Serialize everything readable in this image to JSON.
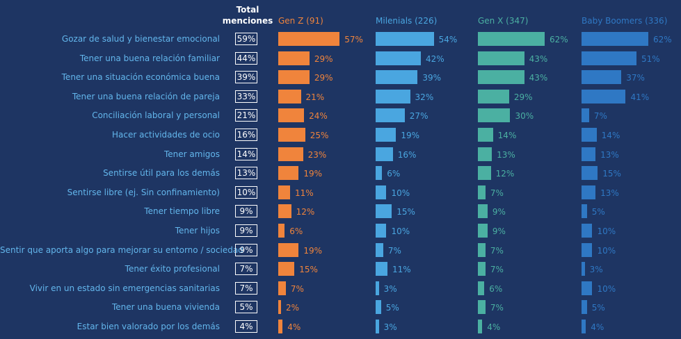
{
  "chart_data": {
    "type": "bar",
    "orientation": "horizontal",
    "total_header": "Total menciones",
    "categories": [
      "Gozar de salud y bienestar emocional",
      "Tener una buena relación familiar",
      "Tener una situación económica buena",
      "Tener una buena relación de pareja",
      "Conciliación laboral y personal",
      "Hacer actividades de ocio",
      "Tener amigos",
      "Sentirse útil para los demás",
      "Sentirse libre (ej. Sin confinamiento)",
      "Tener tiempo libre",
      "Tener hijos",
      "Sentir que aporta algo para mejorar su entorno / sociedad",
      "Tener éxito profesional",
      "Vivir en un estado sin emergencias sanitarias",
      "Tener una buena vivienda",
      "Estar bien valorado por los demás"
    ],
    "totals": [
      59,
      44,
      39,
      33,
      21,
      16,
      14,
      13,
      10,
      9,
      9,
      9,
      7,
      7,
      5,
      4
    ],
    "value_suffix": "%",
    "series": [
      {
        "name": "Gen Z (91)",
        "color": "#f0843c",
        "values": [
          57,
          29,
          29,
          21,
          24,
          25,
          23,
          19,
          11,
          12,
          6,
          19,
          15,
          7,
          2,
          4
        ]
      },
      {
        "name": "Milenials (226)",
        "color": "#4aa6e0",
        "values": [
          54,
          42,
          39,
          32,
          27,
          19,
          16,
          6,
          10,
          15,
          10,
          7,
          11,
          3,
          5,
          3
        ]
      },
      {
        "name": "Gen X (347)",
        "color": "#4bb0a2",
        "values": [
          62,
          43,
          43,
          29,
          30,
          14,
          13,
          12,
          7,
          9,
          9,
          7,
          7,
          6,
          7,
          4
        ]
      },
      {
        "name": "Baby Boomers (336)",
        "color": "#2f78c4",
        "values": [
          62,
          51,
          37,
          41,
          7,
          14,
          13,
          15,
          13,
          5,
          10,
          10,
          3,
          10,
          5,
          4
        ]
      }
    ],
    "xlim": [
      0,
      62
    ]
  }
}
